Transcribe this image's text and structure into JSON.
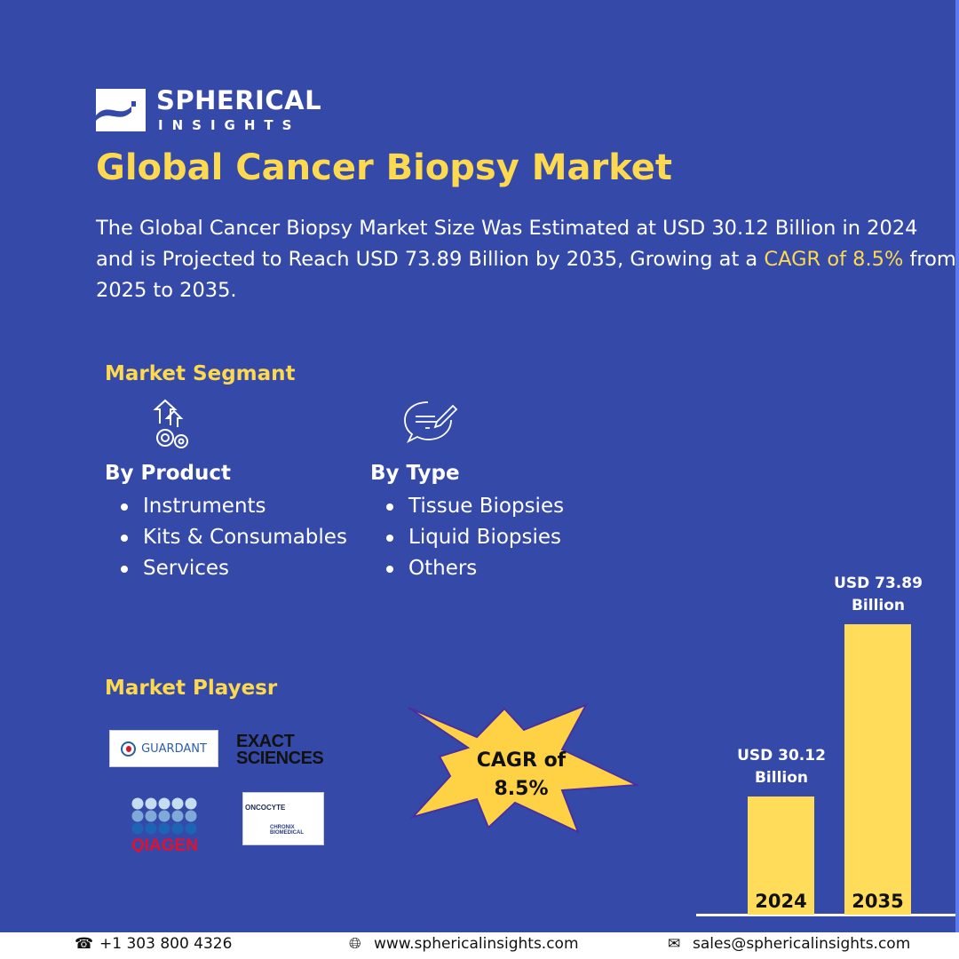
{
  "brand": {
    "name_line1": "SPHERICAL",
    "name_line2": "INSIGHTS"
  },
  "title": "Global Cancer Biopsy Market",
  "description": {
    "part1": "The Global Cancer Biopsy Market Size Was Estimated at USD 30.12 Billion in 2024 and is Projected to Reach USD 73.89 Billion by 2035, Growing at a ",
    "highlight": "CAGR of 8.5%",
    "part2": " from 2025 to 2035."
  },
  "segments": {
    "heading": "Market Segmant",
    "by_product": {
      "title": "By Product",
      "icon": "gears-arrows-icon",
      "items": [
        "Instruments",
        "Kits & Consumables",
        "Services"
      ]
    },
    "by_type": {
      "title": "By Type",
      "icon": "speech-bubble-pencil-icon",
      "items": [
        "Tissue Biopsies",
        "Liquid Biopsies",
        "Others"
      ]
    }
  },
  "players": {
    "heading": "Market Playesr",
    "logos": [
      "GUARDANT",
      "EXACT SCIENCES",
      "QIAGEN",
      "ONCOCYTE",
      "CHRONIX BIOMEDICAL"
    ]
  },
  "cagr": {
    "line1": "CAGR of",
    "line2": "8.5%"
  },
  "chart_data": {
    "type": "bar",
    "categories": [
      "2024",
      "2035"
    ],
    "values": [
      30.12,
      73.89
    ],
    "data_labels": [
      [
        "USD 30.12",
        "Billion"
      ],
      [
        "USD 73.89",
        "Billion"
      ]
    ],
    "bar_color": "#ffdc5a"
  },
  "footer": {
    "phone": "+1 303 800 4326",
    "website": "www.sphericalinsights.com",
    "email": "sales@sphericalinsights.com"
  },
  "colors": {
    "background": "#354aa8",
    "accent": "#fdd94f"
  }
}
